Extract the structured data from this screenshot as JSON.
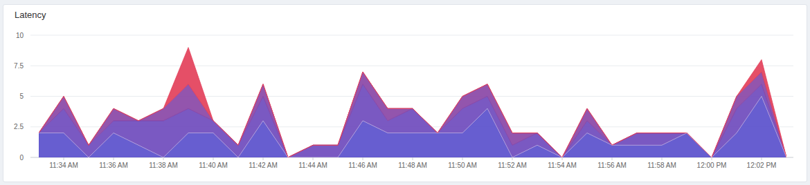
{
  "chart_data": {
    "type": "area",
    "title": "Latency",
    "stacked": true,
    "grid": true,
    "categories": [
      null,
      "11:34 AM",
      null,
      "11:36 AM",
      null,
      "11:38 AM",
      null,
      "11:40 AM",
      null,
      "11:42 AM",
      null,
      "11:44 AM",
      null,
      "11:46 AM",
      null,
      "11:48 AM",
      null,
      "11:50 AM",
      null,
      "11:52 AM",
      null,
      "11:54 AM",
      null,
      "11:56 AM",
      null,
      "11:58 AM",
      null,
      "12:00 PM",
      null,
      "12:02 PM",
      null
    ],
    "series": [
      {
        "color": "#5a50cc",
        "values": [
          2,
          2,
          0,
          2,
          1,
          0,
          2,
          2,
          0,
          3,
          0,
          0,
          0,
          3,
          2,
          2,
          2,
          2,
          4,
          0,
          1,
          0,
          2,
          1,
          1,
          1,
          2,
          0,
          2,
          5,
          0
        ]
      },
      {
        "color": "#6f4bbd",
        "values": [
          0,
          2,
          1,
          1,
          2,
          3,
          2,
          1,
          1,
          2,
          0,
          1,
          1,
          3,
          1,
          2,
          0,
          2,
          1,
          1,
          1,
          0,
          1,
          0,
          1,
          1,
          0,
          0,
          2,
          1,
          0
        ]
      },
      {
        "color": "#8a46a6",
        "values": [
          0,
          1,
          0,
          1,
          0,
          1,
          2,
          0,
          0,
          1,
          0,
          0,
          0,
          1,
          1,
          0,
          0,
          1,
          1,
          1,
          0,
          0,
          1,
          0,
          0,
          0,
          0,
          0,
          1,
          1,
          0
        ]
      },
      {
        "color": "#e3405a",
        "values": [
          0,
          0,
          0,
          0,
          0,
          0,
          3,
          0,
          0,
          0,
          0,
          0,
          0,
          0,
          0,
          0,
          0,
          0,
          0,
          0,
          0,
          0,
          0,
          0,
          0,
          0,
          0,
          0,
          0,
          1,
          0
        ]
      }
    ],
    "ylim": [
      0,
      10
    ],
    "yticks": [
      0,
      2.5,
      5,
      7.5,
      10
    ]
  }
}
